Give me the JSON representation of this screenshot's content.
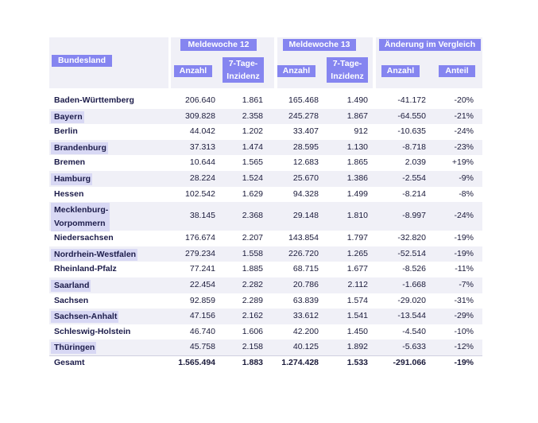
{
  "header": {
    "bundesland": "Bundesland",
    "week12": "Meldewoche 12",
    "week13": "Meldewoche 13",
    "change": "Änderung im Vergleich",
    "anzahl": "Anzahl",
    "inzidenz_l1": "7-Tage-",
    "inzidenz_l2": "Inzidenz",
    "anteil": "Anteil"
  },
  "rows": [
    {
      "name": "Baden-Württemberg",
      "a12": "206.640",
      "i12": "1.861",
      "a13": "165.468",
      "i13": "1.490",
      "diff": "-41.172",
      "pct": "-20%"
    },
    {
      "name": "Bayern",
      "a12": "309.828",
      "i12": "2.358",
      "a13": "245.278",
      "i13": "1.867",
      "diff": "-64.550",
      "pct": "-21%"
    },
    {
      "name": "Berlin",
      "a12": "44.042",
      "i12": "1.202",
      "a13": "33.407",
      "i13": "912",
      "diff": "-10.635",
      "pct": "-24%"
    },
    {
      "name": "Brandenburg",
      "a12": "37.313",
      "i12": "1.474",
      "a13": "28.595",
      "i13": "1.130",
      "diff": "-8.718",
      "pct": "-23%"
    },
    {
      "name": "Bremen",
      "a12": "10.644",
      "i12": "1.565",
      "a13": "12.683",
      "i13": "1.865",
      "diff": "2.039",
      "pct": "+19%"
    },
    {
      "name": "Hamburg",
      "a12": "28.224",
      "i12": "1.524",
      "a13": "25.670",
      "i13": "1.386",
      "diff": "-2.554",
      "pct": "-9%"
    },
    {
      "name": "Hessen",
      "a12": "102.542",
      "i12": "1.629",
      "a13": "94.328",
      "i13": "1.499",
      "diff": "-8.214",
      "pct": "-8%"
    },
    {
      "name": "Mecklenburg-",
      "name2": "Vorpommern",
      "a12": "38.145",
      "i12": "2.368",
      "a13": "29.148",
      "i13": "1.810",
      "diff": "-8.997",
      "pct": "-24%"
    },
    {
      "name": "Niedersachsen",
      "a12": "176.674",
      "i12": "2.207",
      "a13": "143.854",
      "i13": "1.797",
      "diff": "-32.820",
      "pct": "-19%"
    },
    {
      "name": "Nordrhein-Westfalen",
      "a12": "279.234",
      "i12": "1.558",
      "a13": "226.720",
      "i13": "1.265",
      "diff": "-52.514",
      "pct": "-19%"
    },
    {
      "name": "Rheinland-Pfalz",
      "a12": "77.241",
      "i12": "1.885",
      "a13": "68.715",
      "i13": "1.677",
      "diff": "-8.526",
      "pct": "-11%"
    },
    {
      "name": "Saarland",
      "a12": "22.454",
      "i12": "2.282",
      "a13": "20.786",
      "i13": "2.112",
      "diff": "-1.668",
      "pct": "-7%"
    },
    {
      "name": "Sachsen",
      "a12": "92.859",
      "i12": "2.289",
      "a13": "63.839",
      "i13": "1.574",
      "diff": "-29.020",
      "pct": "-31%"
    },
    {
      "name": "Sachsen-Anhalt",
      "a12": "47.156",
      "i12": "2.162",
      "a13": "33.612",
      "i13": "1.541",
      "diff": "-13.544",
      "pct": "-29%"
    },
    {
      "name": "Schleswig-Holstein",
      "a12": "46.740",
      "i12": "1.606",
      "a13": "42.200",
      "i13": "1.450",
      "diff": "-4.540",
      "pct": "-10%"
    },
    {
      "name": "Thüringen",
      "a12": "45.758",
      "i12": "2.158",
      "a13": "40.125",
      "i13": "1.892",
      "diff": "-5.633",
      "pct": "-12%"
    }
  ],
  "total": {
    "name": "Gesamt",
    "a12": "1.565.494",
    "i12": "1.883",
    "a13": "1.274.428",
    "i13": "1.533",
    "diff": "-291.066",
    "pct": "-19%"
  }
}
